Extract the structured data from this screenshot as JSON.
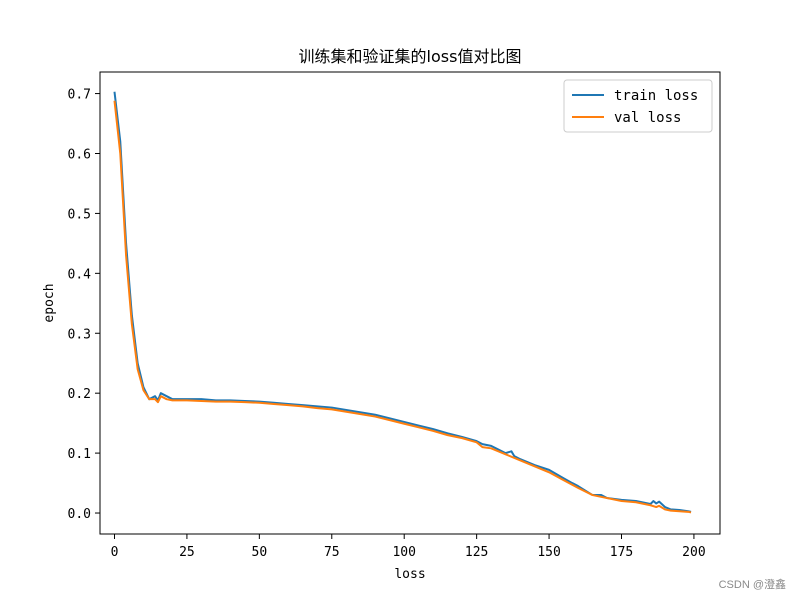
{
  "chart_data": {
    "type": "line",
    "title": "训练集和验证集的loss值对比图",
    "xlabel": "loss",
    "ylabel": "epoch",
    "xlim": [
      -5,
      209
    ],
    "ylim": [
      -0.035,
      0.736
    ],
    "xticks": [
      0,
      25,
      50,
      75,
      100,
      125,
      150,
      175,
      200
    ],
    "xtick_labels": [
      "0",
      "25",
      "50",
      "75",
      "100",
      "125",
      "150",
      "175",
      "200"
    ],
    "yticks": [
      0.0,
      0.1,
      0.2,
      0.3,
      0.4,
      0.5,
      0.6,
      0.7
    ],
    "ytick_labels": [
      "0.0",
      "0.1",
      "0.2",
      "0.3",
      "0.4",
      "0.5",
      "0.6",
      "0.7"
    ],
    "grid": false,
    "legend_position": "top-right",
    "series": [
      {
        "name": "train loss",
        "color": "#1f77b4",
        "x": [
          0,
          2,
          4,
          6,
          8,
          10,
          12,
          14,
          15,
          16,
          18,
          20,
          25,
          30,
          35,
          40,
          45,
          50,
          55,
          60,
          65,
          70,
          75,
          80,
          85,
          90,
          95,
          100,
          105,
          110,
          115,
          120,
          125,
          127,
          130,
          135,
          137,
          138,
          140,
          145,
          150,
          155,
          158,
          160,
          165,
          168,
          170,
          175,
          180,
          185,
          186,
          187,
          188,
          190,
          192,
          195,
          198,
          199
        ],
        "values": [
          0.703,
          0.62,
          0.45,
          0.33,
          0.25,
          0.21,
          0.19,
          0.195,
          0.188,
          0.2,
          0.195,
          0.19,
          0.19,
          0.19,
          0.188,
          0.188,
          0.187,
          0.186,
          0.184,
          0.182,
          0.18,
          0.178,
          0.176,
          0.172,
          0.168,
          0.164,
          0.158,
          0.152,
          0.146,
          0.14,
          0.133,
          0.127,
          0.12,
          0.115,
          0.112,
          0.1,
          0.103,
          0.095,
          0.09,
          0.08,
          0.072,
          0.058,
          0.05,
          0.045,
          0.03,
          0.03,
          0.025,
          0.022,
          0.02,
          0.015,
          0.02,
          0.016,
          0.019,
          0.01,
          0.006,
          0.005,
          0.003,
          0.002
        ]
      },
      {
        "name": "val loss",
        "color": "#ff7f0e",
        "x": [
          0,
          2,
          4,
          6,
          8,
          10,
          12,
          14,
          15,
          16,
          18,
          20,
          25,
          30,
          35,
          40,
          45,
          50,
          55,
          60,
          65,
          70,
          75,
          80,
          85,
          90,
          95,
          100,
          105,
          110,
          115,
          120,
          125,
          127,
          130,
          135,
          140,
          145,
          150,
          155,
          160,
          165,
          170,
          175,
          180,
          185,
          187,
          188,
          190,
          192,
          195,
          198,
          199
        ],
        "values": [
          0.688,
          0.6,
          0.43,
          0.315,
          0.24,
          0.205,
          0.19,
          0.19,
          0.185,
          0.195,
          0.19,
          0.188,
          0.188,
          0.187,
          0.186,
          0.186,
          0.185,
          0.184,
          0.182,
          0.18,
          0.178,
          0.175,
          0.173,
          0.169,
          0.165,
          0.161,
          0.155,
          0.149,
          0.143,
          0.137,
          0.13,
          0.125,
          0.118,
          0.11,
          0.108,
          0.098,
          0.088,
          0.078,
          0.068,
          0.055,
          0.042,
          0.03,
          0.025,
          0.02,
          0.018,
          0.013,
          0.01,
          0.012,
          0.006,
          0.004,
          0.003,
          0.002,
          0.001
        ]
      }
    ]
  },
  "watermark": "CSDN @澄鑫"
}
